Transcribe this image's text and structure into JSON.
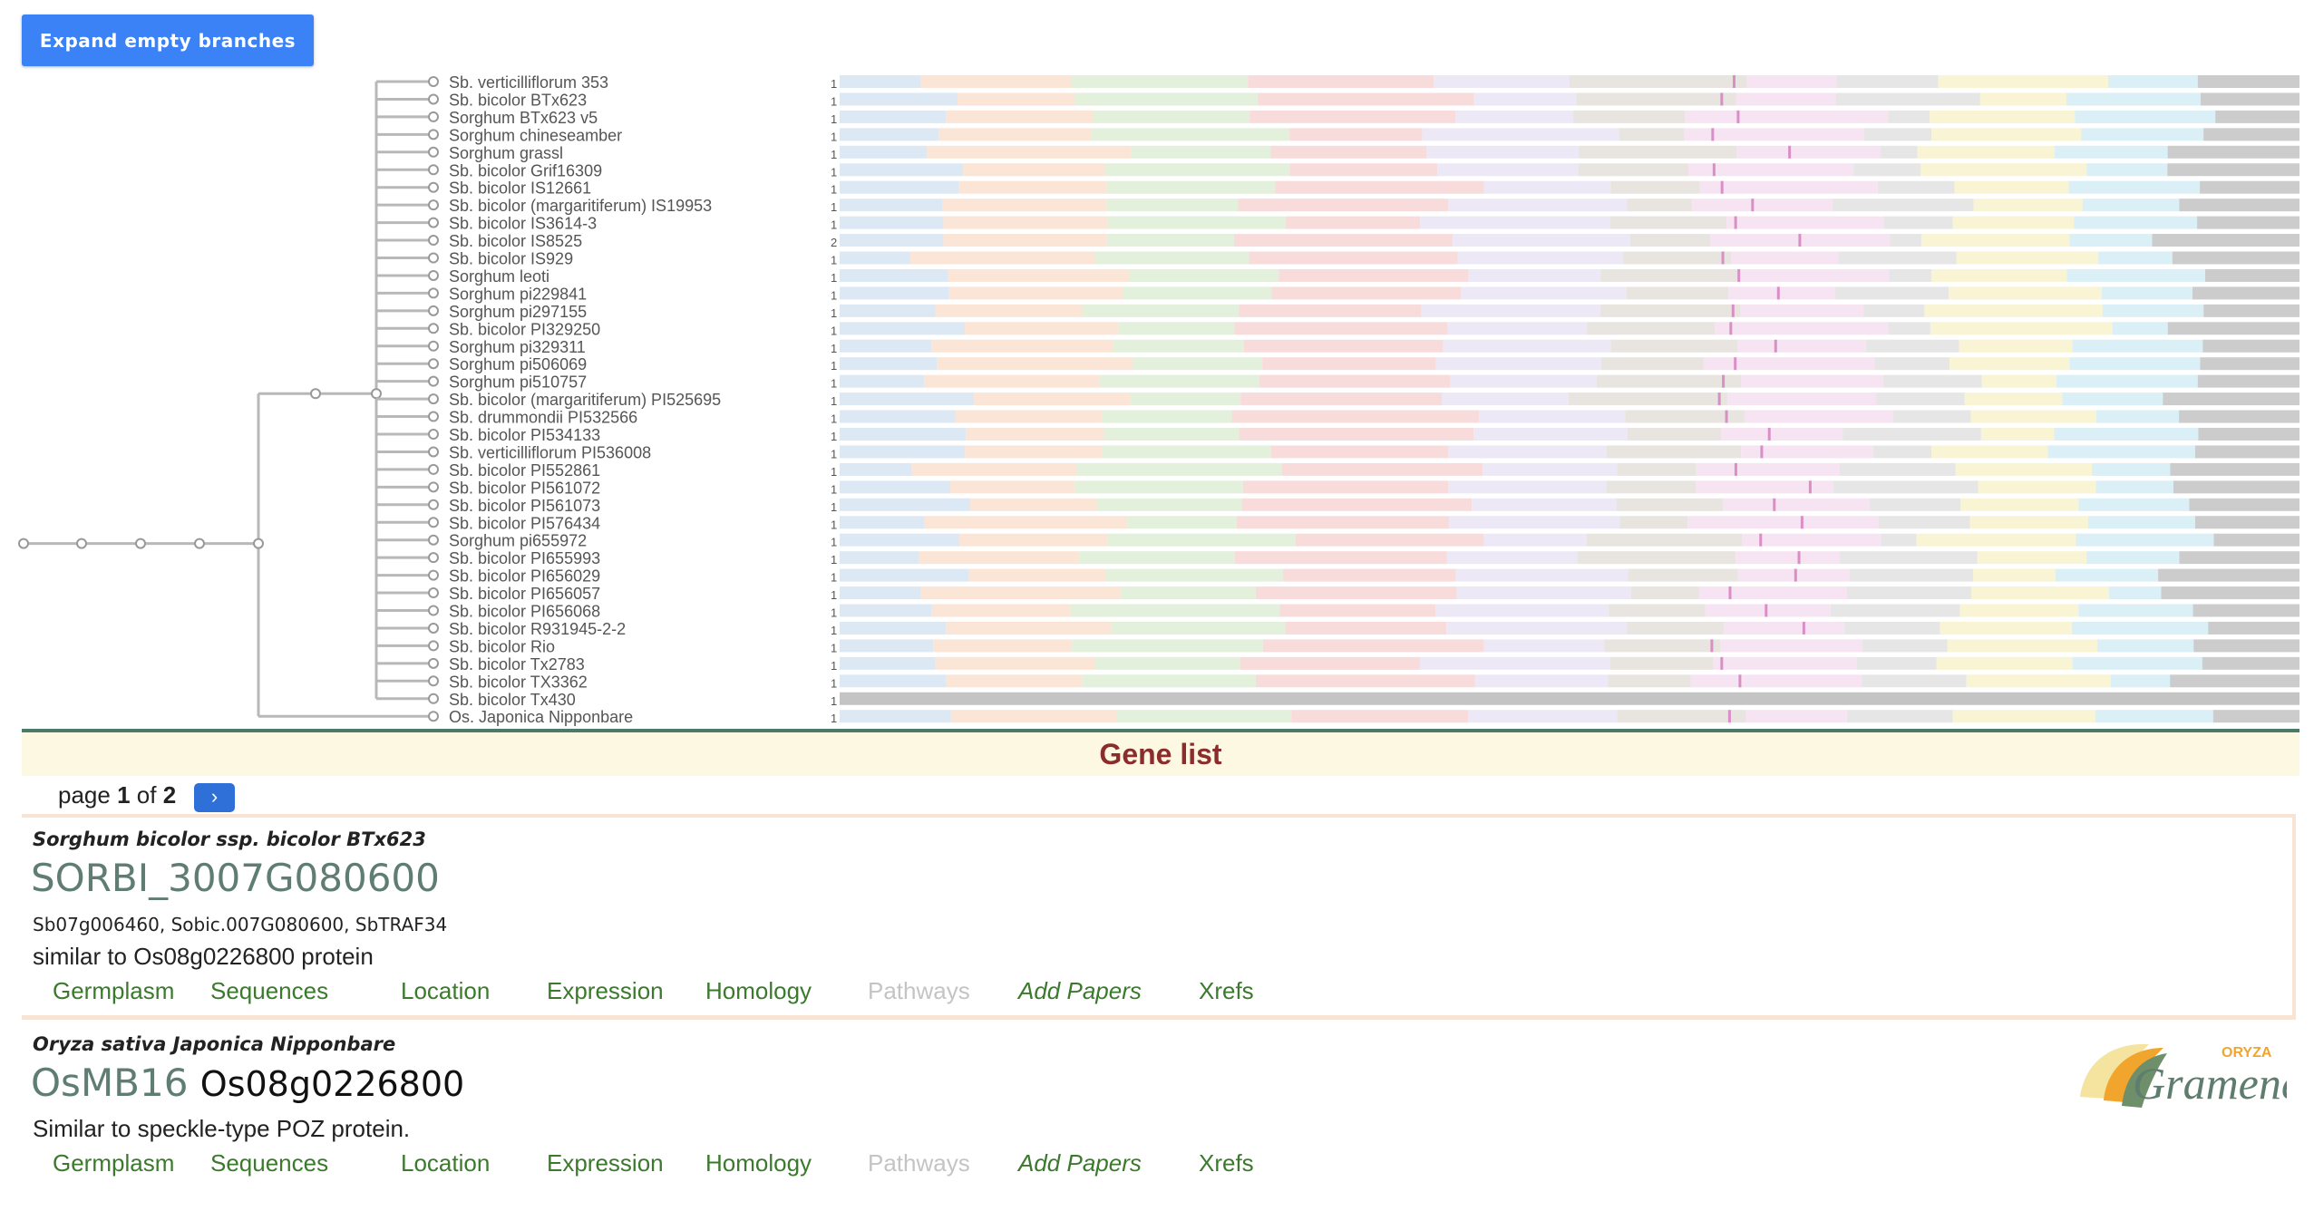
{
  "toolbar": {
    "expand_label": "Expand empty branches"
  },
  "tree": {
    "leaves": [
      {
        "name": "Sb. verticilliflorum 353",
        "count": "1"
      },
      {
        "name": "Sb. bicolor BTx623",
        "count": "1"
      },
      {
        "name": "Sorghum BTx623 v5",
        "count": "1"
      },
      {
        "name": "Sorghum chineseamber",
        "count": "1"
      },
      {
        "name": "Sorghum grassl",
        "count": "1"
      },
      {
        "name": "Sb. bicolor Grif16309",
        "count": "1"
      },
      {
        "name": "Sb. bicolor IS12661",
        "count": "1"
      },
      {
        "name": "Sb. bicolor (margaritiferum) IS19953",
        "count": "1"
      },
      {
        "name": "Sb. bicolor IS3614-3",
        "count": "1"
      },
      {
        "name": "Sb. bicolor IS8525",
        "count": "2"
      },
      {
        "name": "Sb. bicolor IS929",
        "count": "1"
      },
      {
        "name": "Sorghum leoti",
        "count": "1"
      },
      {
        "name": "Sorghum pi229841",
        "count": "1"
      },
      {
        "name": "Sorghum pi297155",
        "count": "1"
      },
      {
        "name": "Sb. bicolor PI329250",
        "count": "1"
      },
      {
        "name": "Sorghum pi329311",
        "count": "1"
      },
      {
        "name": "Sorghum pi506069",
        "count": "1"
      },
      {
        "name": "Sorghum pi510757",
        "count": "1"
      },
      {
        "name": "Sb. bicolor (margaritiferum) PI525695",
        "count": "1"
      },
      {
        "name": "Sb. drummondii PI532566",
        "count": "1"
      },
      {
        "name": "Sb. bicolor PI534133",
        "count": "1"
      },
      {
        "name": "Sb. verticilliflorum PI536008",
        "count": "1"
      },
      {
        "name": "Sb. bicolor PI552861",
        "count": "1"
      },
      {
        "name": "Sb. bicolor PI561072",
        "count": "1"
      },
      {
        "name": "Sb. bicolor PI561073",
        "count": "1"
      },
      {
        "name": "Sb. bicolor PI576434",
        "count": "1"
      },
      {
        "name": "Sorghum pi655972",
        "count": "1"
      },
      {
        "name": "Sb. bicolor PI655993",
        "count": "1"
      },
      {
        "name": "Sb. bicolor PI656029",
        "count": "1"
      },
      {
        "name": "Sb. bicolor PI656057",
        "count": "1"
      },
      {
        "name": "Sb. bicolor PI656068",
        "count": "1"
      },
      {
        "name": "Sb. bicolor R931945-2-2",
        "count": "1"
      },
      {
        "name": "Sb. bicolor Rio",
        "count": "1"
      },
      {
        "name": "Sb. bicolor Tx2783",
        "count": "1"
      },
      {
        "name": "Sb. bicolor TX3362",
        "count": "1"
      },
      {
        "name": "Sb. bicolor Tx430",
        "count": "1"
      },
      {
        "name": "Os. Japonica Nipponbare",
        "count": "1"
      }
    ],
    "domain_colors": [
      "#dde8f5",
      "#fbe5d6",
      "#e2f0dc",
      "#f8dcdc",
      "#ece8f6",
      "#e8e4e0",
      "#f7e4f2",
      "#e6e6e6",
      "#f9f4d4",
      "#dbeff6",
      "#cccccc"
    ]
  },
  "gene_list": {
    "title": "Gene list",
    "pager": {
      "prefix": "page",
      "current": "1",
      "of_word": "of",
      "total": "2",
      "next_icon": "›"
    },
    "genes": [
      {
        "species": "Sorghum bicolor ssp. bicolor BTx623",
        "gene_id": "SORBI_3007G080600",
        "alt_id": "",
        "synonyms": "Sb07g006460, Sobic.007G080600, SbTRAF34",
        "description": "similar to Os08g0226800 protein",
        "tabs": [
          {
            "label": "Germplasm",
            "state": "enabled"
          },
          {
            "label": "Sequences",
            "state": "enabled"
          },
          {
            "label": "Location",
            "state": "enabled"
          },
          {
            "label": "Expression",
            "state": "enabled"
          },
          {
            "label": "Homology",
            "state": "enabled"
          },
          {
            "label": "Pathways",
            "state": "disabled"
          },
          {
            "label": "Add Papers",
            "state": "enabled"
          },
          {
            "label": "Xrefs",
            "state": "enabled"
          }
        ]
      },
      {
        "species": "Oryza sativa Japonica Nipponbare",
        "gene_id": "OsMB16",
        "alt_id": "Os08g0226800",
        "synonyms": "",
        "description": "Similar to speckle-type POZ protein.",
        "tabs": [
          {
            "label": "Germplasm",
            "state": "enabled"
          },
          {
            "label": "Sequences",
            "state": "enabled"
          },
          {
            "label": "Location",
            "state": "enabled"
          },
          {
            "label": "Expression",
            "state": "enabled"
          },
          {
            "label": "Homology",
            "state": "enabled"
          },
          {
            "label": "Pathways",
            "state": "disabled"
          },
          {
            "label": "Add Papers",
            "state": "enabled"
          },
          {
            "label": "Xrefs",
            "state": "enabled"
          }
        ]
      }
    ]
  },
  "logo": {
    "top_text": "ORYZA",
    "main_text": "Gramene",
    "accent": "#f2a52d",
    "text_color": "#5e7d6e"
  }
}
